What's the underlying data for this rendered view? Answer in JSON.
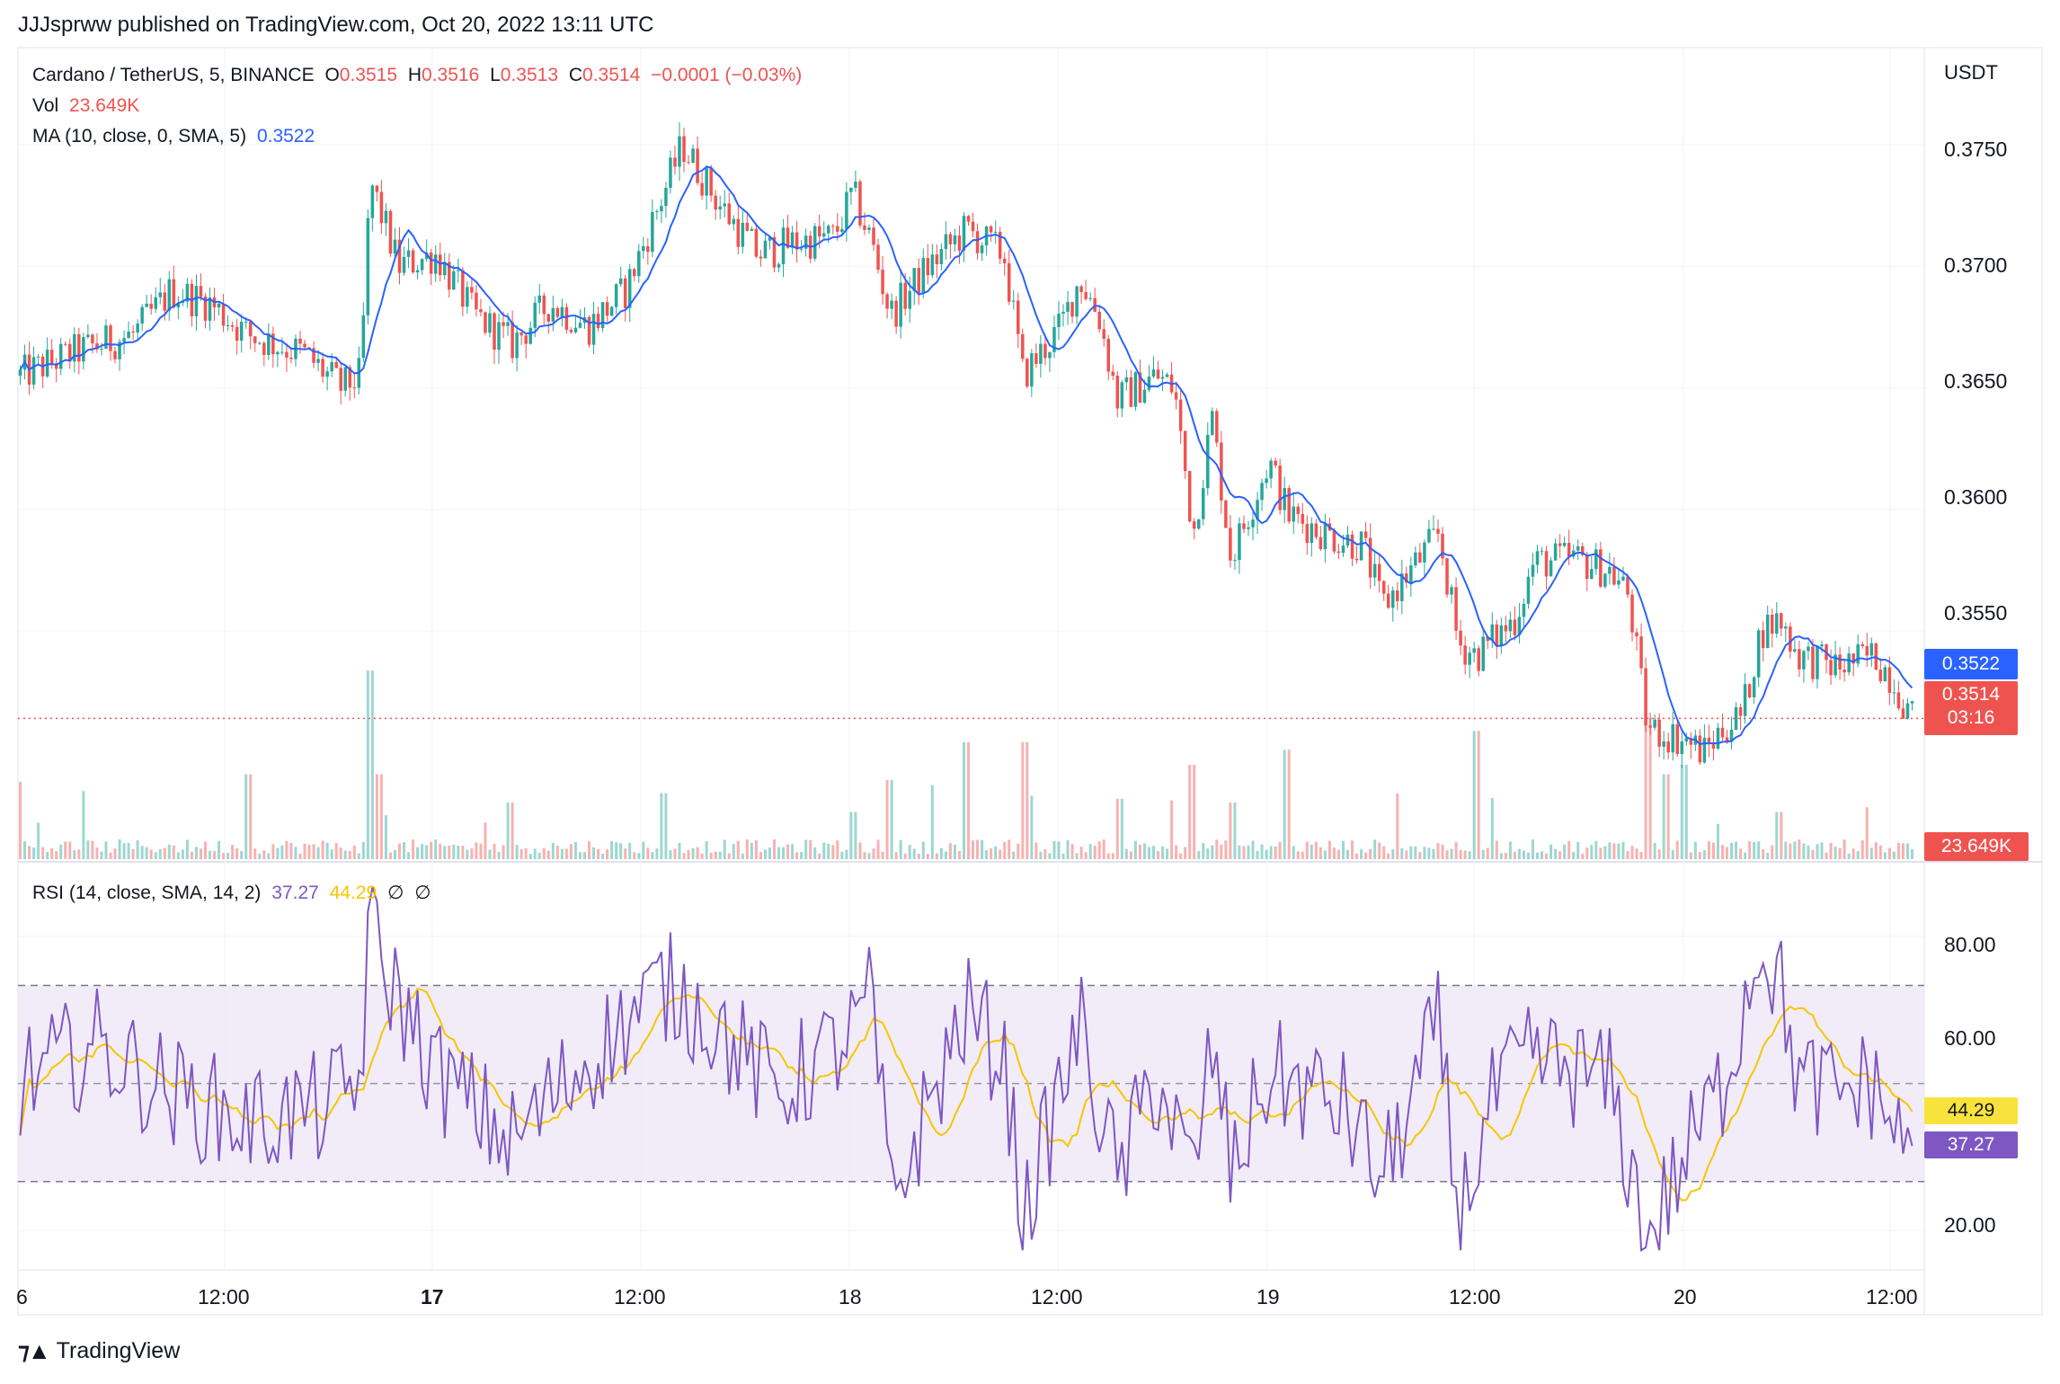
{
  "header": {
    "published": "JJJsprww published on TradingView.com, Oct 20, 2022 13:11 UTC"
  },
  "legend": {
    "symbol": "Cardano / TetherUS, 5, BINANCE",
    "o_label": "O",
    "o_value": "0.3515",
    "h_label": "H",
    "h_value": "0.3516",
    "l_label": "L",
    "l_value": "0.3513",
    "c_label": "C",
    "c_value": "0.3514",
    "change": "−0.0001 (−0.03%)",
    "vol_label": "Vol",
    "vol_value": "23.649K",
    "ma_label": "MA (10, close, 0, SMA, 5)",
    "ma_value": "0.3522",
    "rsi_label": "RSI (14, close, SMA, 14, 2)",
    "rsi_value": "37.27",
    "rsi_ma_value": "44.29",
    "rsi_empty1": "∅",
    "rsi_empty2": "∅"
  },
  "price_axis": {
    "currency": "USDT",
    "ticks": [
      "0.3750",
      "0.3700",
      "0.3650",
      "0.3600",
      "0.3550"
    ]
  },
  "rsi_axis": {
    "ticks": [
      "80.00",
      "60.00",
      "20.00"
    ]
  },
  "tags": {
    "ma": "0.3522",
    "last_price": "0.3514",
    "countdown": "03:16",
    "volume": "23.649K",
    "rsi_ma": "44.29",
    "rsi": "37.27"
  },
  "time_axis": {
    "labels": [
      "6",
      "12:00",
      "17",
      "12:00",
      "18",
      "12:00",
      "19",
      "12:00",
      "20",
      "12:00"
    ]
  },
  "brand": {
    "name": "TradingView"
  },
  "colors": {
    "up": "#26a69a",
    "down": "#ef5350",
    "ma": "#2962ff",
    "rsi": "#7e57c2",
    "rsi_ma": "#f7c600",
    "rsi_band": "#ede7f6"
  },
  "chart_data": [
    {
      "type": "candlestick",
      "symbol": "Cardano / TetherUS",
      "interval": "5",
      "x_labels": [
        "6",
        "12:00",
        "17",
        "12:00",
        "18",
        "12:00",
        "19",
        "12:00",
        "20",
        "12:00"
      ],
      "ylim": [
        0.3455,
        0.379
      ],
      "close_path": [
        [
          0.0,
          0.3655
        ],
        [
          0.03,
          0.3665
        ],
        [
          0.06,
          0.3672
        ],
        [
          0.08,
          0.369
        ],
        [
          0.1,
          0.3685
        ],
        [
          0.12,
          0.3672
        ],
        [
          0.15,
          0.3664
        ],
        [
          0.17,
          0.365
        ],
        [
          0.18,
          0.3655
        ],
        [
          0.185,
          0.3735
        ],
        [
          0.2,
          0.37
        ],
        [
          0.22,
          0.3705
        ],
        [
          0.24,
          0.368
        ],
        [
          0.26,
          0.3668
        ],
        [
          0.28,
          0.3685
        ],
        [
          0.3,
          0.3675
        ],
        [
          0.32,
          0.369
        ],
        [
          0.34,
          0.373
        ],
        [
          0.35,
          0.375
        ],
        [
          0.37,
          0.3725
        ],
        [
          0.39,
          0.3705
        ],
        [
          0.41,
          0.371
        ],
        [
          0.43,
          0.3712
        ],
        [
          0.44,
          0.373
        ],
        [
          0.45,
          0.371
        ],
        [
          0.46,
          0.368
        ],
        [
          0.48,
          0.37
        ],
        [
          0.5,
          0.3715
        ],
        [
          0.52,
          0.3705
        ],
        [
          0.53,
          0.3655
        ],
        [
          0.55,
          0.3675
        ],
        [
          0.56,
          0.3695
        ],
        [
          0.57,
          0.368
        ],
        [
          0.58,
          0.3645
        ],
        [
          0.6,
          0.3655
        ],
        [
          0.61,
          0.365
        ],
        [
          0.62,
          0.359
        ],
        [
          0.63,
          0.3638
        ],
        [
          0.64,
          0.358
        ],
        [
          0.66,
          0.362
        ],
        [
          0.67,
          0.3598
        ],
        [
          0.69,
          0.359
        ],
        [
          0.71,
          0.3585
        ],
        [
          0.72,
          0.356
        ],
        [
          0.74,
          0.358
        ],
        [
          0.75,
          0.359
        ],
        [
          0.76,
          0.3545
        ],
        [
          0.77,
          0.354
        ],
        [
          0.79,
          0.3555
        ],
        [
          0.8,
          0.3578
        ],
        [
          0.82,
          0.358
        ],
        [
          0.84,
          0.3575
        ],
        [
          0.85,
          0.3565
        ],
        [
          0.86,
          0.351
        ],
        [
          0.88,
          0.3505
        ],
        [
          0.89,
          0.35
        ],
        [
          0.9,
          0.351
        ],
        [
          0.91,
          0.3515
        ],
        [
          0.92,
          0.355
        ],
        [
          0.93,
          0.3555
        ],
        [
          0.94,
          0.354
        ],
        [
          0.96,
          0.3535
        ],
        [
          0.98,
          0.354
        ],
        [
          0.99,
          0.353
        ],
        [
          1.0,
          0.3514
        ]
      ],
      "ma": {
        "name": "MA (10, close, 0, SMA, 5)",
        "last": 0.3522
      },
      "last": {
        "open": 0.3515,
        "high": 0.3516,
        "low": 0.3513,
        "close": 0.3514,
        "change": -0.0001,
        "change_pct": -0.03
      }
    },
    {
      "type": "bar",
      "name": "Vol",
      "last": "23.649K",
      "spikes": [
        [
          0.12,
          0.45
        ],
        [
          0.185,
          1.0
        ],
        [
          0.19,
          0.45
        ],
        [
          0.26,
          0.3
        ],
        [
          0.34,
          0.35
        ],
        [
          0.44,
          0.25
        ],
        [
          0.46,
          0.42
        ],
        [
          0.5,
          0.62
        ],
        [
          0.53,
          0.62
        ],
        [
          0.58,
          0.32
        ],
        [
          0.62,
          0.5
        ],
        [
          0.64,
          0.3
        ],
        [
          0.67,
          0.58
        ],
        [
          0.77,
          0.68
        ],
        [
          0.86,
          0.75
        ],
        [
          0.87,
          0.45
        ],
        [
          0.88,
          0.5
        ],
        [
          0.93,
          0.25
        ]
      ]
    },
    {
      "type": "line",
      "name": "RSI (14, close, SMA, 14, 2)",
      "ylim": [
        12,
        95
      ],
      "bands": [
        30,
        50,
        70
      ],
      "last": {
        "rsi": 37.27,
        "rsi_ma": 44.29
      },
      "rsi_path": [
        [
          0.0,
          50
        ],
        [
          0.04,
          58
        ],
        [
          0.08,
          48
        ],
        [
          0.12,
          42
        ],
        [
          0.16,
          45
        ],
        [
          0.18,
          50
        ],
        [
          0.185,
          90
        ],
        [
          0.19,
          75
        ],
        [
          0.22,
          52
        ],
        [
          0.26,
          38
        ],
        [
          0.3,
          55
        ],
        [
          0.32,
          62
        ],
        [
          0.34,
          70
        ],
        [
          0.36,
          65
        ],
        [
          0.4,
          48
        ],
        [
          0.44,
          60
        ],
        [
          0.45,
          68
        ],
        [
          0.46,
          25
        ],
        [
          0.48,
          45
        ],
        [
          0.5,
          65
        ],
        [
          0.52,
          55
        ],
        [
          0.53,
          22
        ],
        [
          0.56,
          62
        ],
        [
          0.58,
          30
        ],
        [
          0.6,
          52
        ],
        [
          0.62,
          30
        ],
        [
          0.63,
          58
        ],
        [
          0.64,
          32
        ],
        [
          0.66,
          52
        ],
        [
          0.7,
          45
        ],
        [
          0.72,
          30
        ],
        [
          0.75,
          62
        ],
        [
          0.76,
          22
        ],
        [
          0.78,
          48
        ],
        [
          0.8,
          55
        ],
        [
          0.84,
          50
        ],
        [
          0.86,
          18
        ],
        [
          0.88,
          35
        ],
        [
          0.9,
          50
        ],
        [
          0.92,
          80
        ],
        [
          0.93,
          70
        ],
        [
          0.94,
          50
        ],
        [
          0.96,
          48
        ],
        [
          0.98,
          50
        ],
        [
          0.995,
          37
        ]
      ]
    }
  ]
}
